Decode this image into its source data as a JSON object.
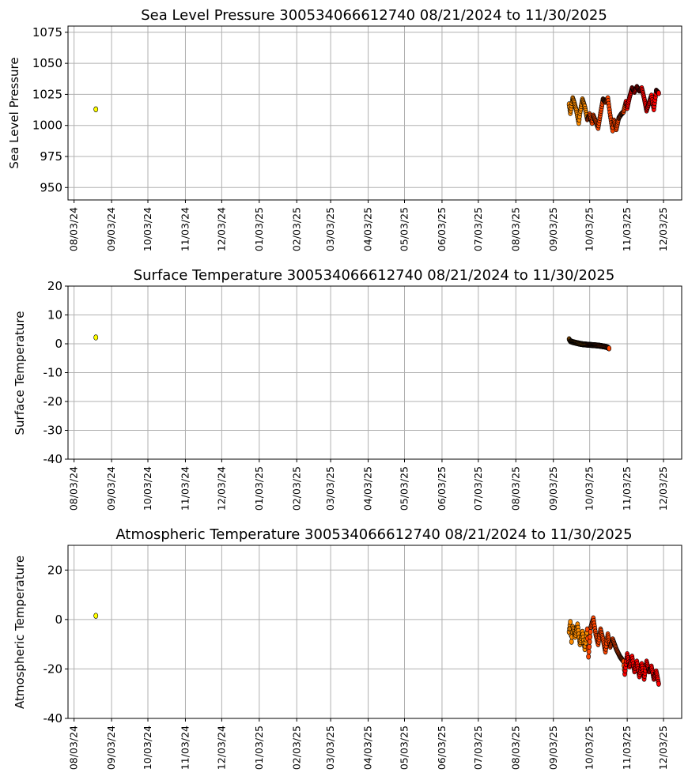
{
  "figure": {
    "background": "#ffffff",
    "grid_color": "#b0b0b0",
    "series_colors": {
      "early": "#ffff00",
      "sep": "#ff8c00",
      "oct": "#ff4500",
      "nov": "#ff0000",
      "outline": "#000000"
    }
  },
  "chart_data": [
    {
      "type": "scatter",
      "title": "Sea Level Pressure 300534066612740  08/21/2024 to 11/30/2025",
      "ylabel": "Sea Level Pressure",
      "xlabel": "",
      "grid": true,
      "xlim": [
        "2024-07-29",
        "2025-12-18"
      ],
      "ylim": [
        940,
        1080
      ],
      "yticks": [
        950,
        975,
        1000,
        1025,
        1050,
        1075
      ],
      "xticks": [
        "08/03/24",
        "09/03/24",
        "10/03/24",
        "11/03/24",
        "12/03/24",
        "01/03/25",
        "02/03/25",
        "03/03/25",
        "04/03/25",
        "05/03/25",
        "06/03/25",
        "07/03/25",
        "08/03/25",
        "09/03/25",
        "10/03/25",
        "11/03/25",
        "12/03/25"
      ],
      "points": [
        {
          "x": "2024-08-21",
          "y": 1013.0,
          "c": "early"
        },
        {
          "x": "2025-09-16",
          "y": 1017.0,
          "c": "sep"
        },
        {
          "x": "2025-09-17",
          "y": 1010.0,
          "c": "sep"
        },
        {
          "x": "2025-09-18",
          "y": 1016.0,
          "c": "sep"
        },
        {
          "x": "2025-09-19",
          "y": 1022.0,
          "c": "sep"
        },
        {
          "x": "2025-09-20",
          "y": 1019.0,
          "c": "sep"
        },
        {
          "x": "2025-09-22",
          "y": 1012.0,
          "c": "sep"
        },
        {
          "x": "2025-09-24",
          "y": 1002.0,
          "c": "sep"
        },
        {
          "x": "2025-09-25",
          "y": 1010.0,
          "c": "sep"
        },
        {
          "x": "2025-09-27",
          "y": 1021.0,
          "c": "sep"
        },
        {
          "x": "2025-09-29",
          "y": 1015.0,
          "c": "sep"
        },
        {
          "x": "2025-10-01",
          "y": 1005.0,
          "c": "oct"
        },
        {
          "x": "2025-10-03",
          "y": 1009.0,
          "c": "oct"
        },
        {
          "x": "2025-10-05",
          "y": 1002.0,
          "c": "oct"
        },
        {
          "x": "2025-10-06",
          "y": 1008.0,
          "c": "oct"
        },
        {
          "x": "2025-10-08",
          "y": 1003.0,
          "c": "oct"
        },
        {
          "x": "2025-10-10",
          "y": 998.0,
          "c": "oct"
        },
        {
          "x": "2025-10-12",
          "y": 1010.0,
          "c": "oct"
        },
        {
          "x": "2025-10-14",
          "y": 1021.0,
          "c": "oct"
        },
        {
          "x": "2025-10-16",
          "y": 1019.0,
          "c": "oct"
        },
        {
          "x": "2025-10-18",
          "y": 1022.0,
          "c": "oct"
        },
        {
          "x": "2025-10-20",
          "y": 1008.0,
          "c": "oct"
        },
        {
          "x": "2025-10-22",
          "y": 996.0,
          "c": "oct"
        },
        {
          "x": "2025-10-23",
          "y": 1004.0,
          "c": "oct"
        },
        {
          "x": "2025-10-25",
          "y": 997.0,
          "c": "oct"
        },
        {
          "x": "2025-10-27",
          "y": 1006.0,
          "c": "oct"
        },
        {
          "x": "2025-10-29",
          "y": 1009.0,
          "c": "oct"
        },
        {
          "x": "2025-10-31",
          "y": 1011.0,
          "c": "oct"
        },
        {
          "x": "2025-11-02",
          "y": 1019.0,
          "c": "nov"
        },
        {
          "x": "2025-11-03",
          "y": 1014.0,
          "c": "nov"
        },
        {
          "x": "2025-11-05",
          "y": 1023.0,
          "c": "nov"
        },
        {
          "x": "2025-11-07",
          "y": 1030.0,
          "c": "nov"
        },
        {
          "x": "2025-11-09",
          "y": 1027.0,
          "c": "nov"
        },
        {
          "x": "2025-11-11",
          "y": 1031.0,
          "c": "nov"
        },
        {
          "x": "2025-11-13",
          "y": 1028.0,
          "c": "nov"
        },
        {
          "x": "2025-11-15",
          "y": 1030.0,
          "c": "nov"
        },
        {
          "x": "2025-11-17",
          "y": 1022.0,
          "c": "nov"
        },
        {
          "x": "2025-11-19",
          "y": 1012.0,
          "c": "nov"
        },
        {
          "x": "2025-11-21",
          "y": 1018.0,
          "c": "nov"
        },
        {
          "x": "2025-11-23",
          "y": 1024.0,
          "c": "nov"
        },
        {
          "x": "2025-11-25",
          "y": 1013.0,
          "c": "nov"
        },
        {
          "x": "2025-11-27",
          "y": 1028.0,
          "c": "nov"
        },
        {
          "x": "2025-11-29",
          "y": 1026.0,
          "c": "nov"
        }
      ]
    },
    {
      "type": "scatter",
      "title": "Surface Temperature 300534066612740  08/21/2024 to 11/30/2025",
      "ylabel": "Surface Temperature",
      "xlabel": "",
      "grid": true,
      "xlim": [
        "2024-07-29",
        "2025-12-18"
      ],
      "ylim": [
        -40,
        20
      ],
      "yticks": [
        -40,
        -30,
        -20,
        -10,
        0,
        10,
        20
      ],
      "xticks": [
        "08/03/24",
        "09/03/24",
        "10/03/24",
        "11/03/24",
        "12/03/24",
        "01/03/25",
        "02/03/25",
        "03/03/25",
        "04/03/25",
        "05/03/25",
        "06/03/25",
        "07/03/25",
        "08/03/25",
        "09/03/25",
        "10/03/25",
        "11/03/25",
        "12/03/25"
      ],
      "points": [
        {
          "x": "2024-08-21",
          "y": 2.2,
          "c": "early"
        },
        {
          "x": "2025-09-16",
          "y": 1.6,
          "c": "sep"
        },
        {
          "x": "2025-09-17",
          "y": 0.9,
          "c": "sep"
        },
        {
          "x": "2025-09-19",
          "y": 0.6,
          "c": "sep"
        },
        {
          "x": "2025-09-21",
          "y": 0.4,
          "c": "sep"
        },
        {
          "x": "2025-09-23",
          "y": 0.2,
          "c": "sep"
        },
        {
          "x": "2025-09-25",
          "y": 0.0,
          "c": "sep"
        },
        {
          "x": "2025-09-28",
          "y": -0.2,
          "c": "sep"
        },
        {
          "x": "2025-10-01",
          "y": -0.3,
          "c": "oct"
        },
        {
          "x": "2025-10-04",
          "y": -0.4,
          "c": "oct"
        },
        {
          "x": "2025-10-07",
          "y": -0.5,
          "c": "oct"
        },
        {
          "x": "2025-10-10",
          "y": -0.6,
          "c": "oct"
        },
        {
          "x": "2025-10-13",
          "y": -0.8,
          "c": "oct"
        },
        {
          "x": "2025-10-16",
          "y": -1.0,
          "c": "oct"
        },
        {
          "x": "2025-10-18",
          "y": -1.3,
          "c": "oct"
        },
        {
          "x": "2025-10-19",
          "y": -1.6,
          "c": "oct"
        }
      ]
    },
    {
      "type": "scatter",
      "title": "Atmospheric Temperature 300534066612740  08/21/2024 to 11/30/2025",
      "ylabel": "Atmospheric Temperature",
      "xlabel": "",
      "grid": true,
      "xlim": [
        "2024-07-29",
        "2025-12-18"
      ],
      "ylim": [
        -40,
        30
      ],
      "yticks": [
        -40,
        -20,
        0,
        20
      ],
      "xticks": [
        "08/03/24",
        "09/03/24",
        "10/03/24",
        "11/03/24",
        "12/03/24",
        "01/03/25",
        "02/03/25",
        "03/03/25",
        "04/03/25",
        "05/03/25",
        "06/03/25",
        "07/03/25",
        "08/03/25",
        "09/03/25",
        "10/03/25",
        "11/03/25",
        "12/03/25"
      ],
      "points": [
        {
          "x": "2024-08-21",
          "y": 1.5,
          "c": "early"
        },
        {
          "x": "2025-09-16",
          "y": -5.0,
          "c": "sep"
        },
        {
          "x": "2025-09-17",
          "y": -1.0,
          "c": "sep"
        },
        {
          "x": "2025-09-18",
          "y": -9.0,
          "c": "sep"
        },
        {
          "x": "2025-09-19",
          "y": -3.0,
          "c": "sep"
        },
        {
          "x": "2025-09-21",
          "y": -7.0,
          "c": "sep"
        },
        {
          "x": "2025-09-23",
          "y": -2.0,
          "c": "sep"
        },
        {
          "x": "2025-09-25",
          "y": -10.0,
          "c": "sep"
        },
        {
          "x": "2025-09-27",
          "y": -5.0,
          "c": "sep"
        },
        {
          "x": "2025-09-29",
          "y": -12.0,
          "c": "sep"
        },
        {
          "x": "2025-10-01",
          "y": -4.0,
          "c": "oct"
        },
        {
          "x": "2025-10-02",
          "y": -15.0,
          "c": "oct"
        },
        {
          "x": "2025-10-04",
          "y": -3.0,
          "c": "oct"
        },
        {
          "x": "2025-10-06",
          "y": 0.5,
          "c": "oct"
        },
        {
          "x": "2025-10-08",
          "y": -6.0,
          "c": "oct"
        },
        {
          "x": "2025-10-10",
          "y": -10.0,
          "c": "oct"
        },
        {
          "x": "2025-10-12",
          "y": -4.0,
          "c": "oct"
        },
        {
          "x": "2025-10-14",
          "y": -8.0,
          "c": "oct"
        },
        {
          "x": "2025-10-16",
          "y": -13.0,
          "c": "oct"
        },
        {
          "x": "2025-10-18",
          "y": -6.0,
          "c": "oct"
        },
        {
          "x": "2025-10-20",
          "y": -11.0,
          "c": "oct"
        },
        {
          "x": "2025-10-22",
          "y": -8.0,
          "c": "oct"
        },
        {
          "x": "2025-10-25",
          "y": -12.0,
          "c": "oct"
        },
        {
          "x": "2025-10-28",
          "y": -15.0,
          "c": "oct"
        },
        {
          "x": "2025-10-31",
          "y": -17.0,
          "c": "oct"
        },
        {
          "x": "2025-11-01",
          "y": -22.0,
          "c": "nov"
        },
        {
          "x": "2025-11-03",
          "y": -14.0,
          "c": "nov"
        },
        {
          "x": "2025-11-05",
          "y": -19.0,
          "c": "nov"
        },
        {
          "x": "2025-11-07",
          "y": -15.0,
          "c": "nov"
        },
        {
          "x": "2025-11-09",
          "y": -21.0,
          "c": "nov"
        },
        {
          "x": "2025-11-11",
          "y": -17.0,
          "c": "nov"
        },
        {
          "x": "2025-11-13",
          "y": -23.0,
          "c": "nov"
        },
        {
          "x": "2025-11-15",
          "y": -18.0,
          "c": "nov"
        },
        {
          "x": "2025-11-17",
          "y": -24.0,
          "c": "nov"
        },
        {
          "x": "2025-11-19",
          "y": -17.0,
          "c": "nov"
        },
        {
          "x": "2025-11-21",
          "y": -21.0,
          "c": "nov"
        },
        {
          "x": "2025-11-23",
          "y": -19.0,
          "c": "nov"
        },
        {
          "x": "2025-11-25",
          "y": -24.0,
          "c": "nov"
        },
        {
          "x": "2025-11-27",
          "y": -21.0,
          "c": "nov"
        },
        {
          "x": "2025-11-29",
          "y": -26.0,
          "c": "nov"
        }
      ]
    }
  ]
}
